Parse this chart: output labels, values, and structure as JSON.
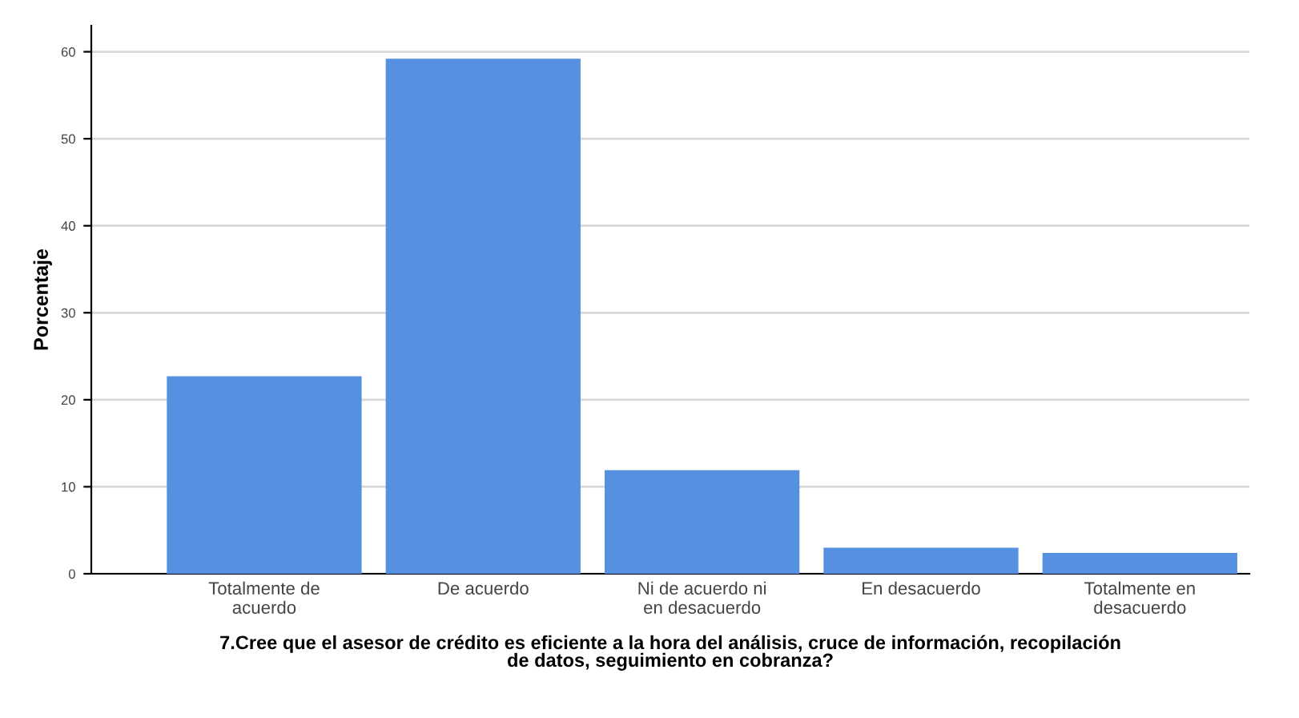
{
  "chart_data": {
    "type": "bar",
    "categories": [
      "Totalmente de\nacuerdo",
      "De acuerdo",
      "Ni de acuerdo ni\nen desacuerdo",
      "En desacuerdo",
      "Totalmente en\ndesacuerdo"
    ],
    "values": [
      22.7,
      59.2,
      11.9,
      3.0,
      2.4
    ],
    "color": "#5591e0",
    "xlabel": "7.Cree que el asesor de crédito es eficiente a la hora del análisis, cruce de información, recopilación\nde datos, seguimiento en cobranza?",
    "ylabel": "Porcentaje",
    "ylim": [
      0,
      63
    ],
    "yticks": [
      0,
      10,
      20,
      30,
      40,
      50,
      60
    ],
    "grid": "y"
  }
}
